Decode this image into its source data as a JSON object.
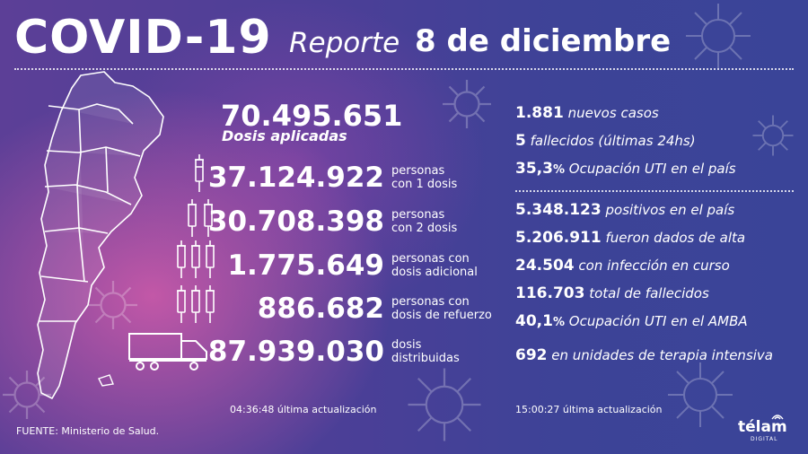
{
  "header": {
    "title": "COVID-19",
    "report_label": "Reporte",
    "date": "8 de diciembre"
  },
  "vaccination": {
    "total_doses": "70.495.651",
    "total_doses_label": "Dosis aplicadas",
    "rows": [
      {
        "value": "37.124.922",
        "label_line1": "personas",
        "label_line2": "con 1 dosis",
        "icon": "syringe-icon"
      },
      {
        "value": "30.708.398",
        "label_line1": "personas",
        "label_line2": "con 2 dosis",
        "icon": "syringe-icon"
      },
      {
        "value": "1.775.649",
        "label_line1": "personas con",
        "label_line2": "dosis adicional",
        "icon": "syringe-icon"
      },
      {
        "value": "886.682",
        "label_line1": "personas con",
        "label_line2": "dosis de refuerzo",
        "icon": "syringe-icon"
      },
      {
        "value": "87.939.030",
        "label_line1": "dosis",
        "label_line2": "distribuidas",
        "icon": "truck-icon"
      }
    ],
    "update_time": "04:36:48",
    "update_label": "última actualización"
  },
  "cases": {
    "daily": [
      {
        "value": "1.881",
        "text": "nuevos casos"
      },
      {
        "value": "5",
        "text": "fallecidos (últimas 24hs)"
      },
      {
        "value": "35,3",
        "suffix": "%",
        "text": "Ocupación UTI en el país"
      }
    ],
    "totals": [
      {
        "value": "5.348.123",
        "text": "positivos en el país"
      },
      {
        "value": "5.206.911",
        "text": "fueron dados de alta"
      },
      {
        "value": "24.504",
        "text": "con infección en curso"
      },
      {
        "value": "116.703",
        "text": "total de fallecidos"
      },
      {
        "value": "40,1",
        "suffix": "%",
        "text": "Ocupación UTI en el AMBA"
      },
      {
        "value": "692",
        "text": "en unidades de terapia intensiva"
      }
    ],
    "update_time": "15:00:27",
    "update_label": "última actualización"
  },
  "footer": {
    "source": "FUENTE: Ministerio de Salud.",
    "logo": "télam",
    "logo_sub": "DIGITAL"
  },
  "colors": {
    "bg_blue": "#3d4397",
    "bg_pink": "#d65caa",
    "text": "#ffffff"
  }
}
